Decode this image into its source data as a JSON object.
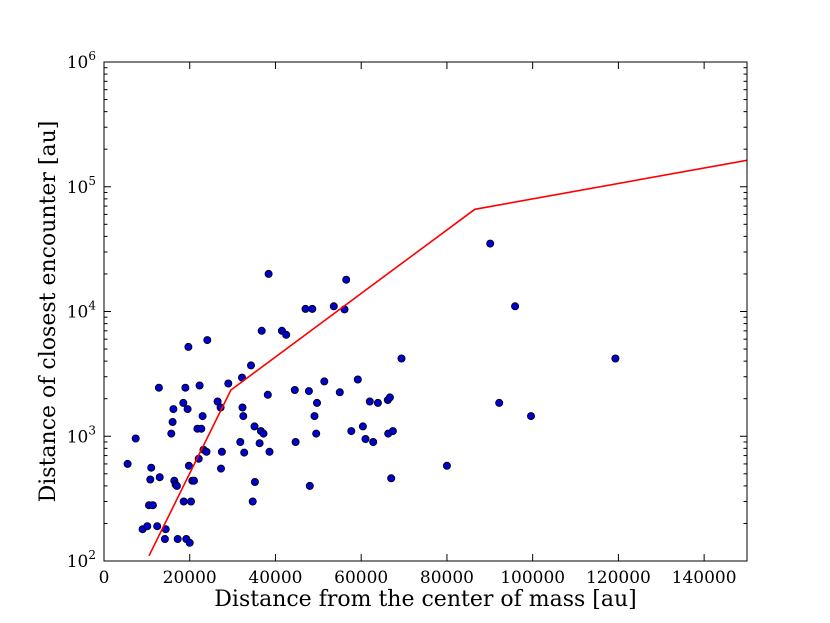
{
  "chart_data": {
    "type": "scatter",
    "title": "",
    "xlabel": "Distance from the center of mass [au]",
    "ylabel": "Distance of closest encounter [au]",
    "xlim": [
      0,
      150000
    ],
    "ylim": [
      100,
      1000000
    ],
    "yscale": "log",
    "grid": false,
    "xticks": [
      {
        "value": 0,
        "label": "0"
      },
      {
        "value": 20000,
        "label": "20000"
      },
      {
        "value": 40000,
        "label": "40000"
      },
      {
        "value": 60000,
        "label": "60000"
      },
      {
        "value": 80000,
        "label": "80000"
      },
      {
        "value": 100000,
        "label": "100000"
      },
      {
        "value": 120000,
        "label": "120000"
      },
      {
        "value": 140000,
        "label": "140000"
      }
    ],
    "yticks": [
      {
        "value": 100,
        "base": "10",
        "exp": "2"
      },
      {
        "value": 1000,
        "base": "10",
        "exp": "3"
      },
      {
        "value": 10000,
        "base": "10",
        "exp": "4"
      },
      {
        "value": 100000,
        "base": "10",
        "exp": "5"
      },
      {
        "value": 1000000,
        "base": "10",
        "exp": "6"
      }
    ],
    "colors": {
      "points": "#0000cc",
      "point_edge": "#000000",
      "line": "#ff0000"
    },
    "points": [
      [
        5500,
        600
      ],
      [
        7400,
        960
      ],
      [
        9000,
        180
      ],
      [
        10100,
        190
      ],
      [
        10500,
        280
      ],
      [
        10800,
        450
      ],
      [
        11000,
        560
      ],
      [
        11400,
        280
      ],
      [
        12400,
        190
      ],
      [
        12800,
        2450
      ],
      [
        13000,
        470
      ],
      [
        14200,
        150
      ],
      [
        14400,
        180
      ],
      [
        15700,
        1050
      ],
      [
        16000,
        1300
      ],
      [
        16200,
        1650
      ],
      [
        16400,
        440
      ],
      [
        16700,
        410
      ],
      [
        17000,
        400
      ],
      [
        17200,
        150
      ],
      [
        18500,
        1850
      ],
      [
        18600,
        300
      ],
      [
        19000,
        2450
      ],
      [
        19200,
        150
      ],
      [
        19500,
        1650
      ],
      [
        19700,
        5200
      ],
      [
        19800,
        580
      ],
      [
        20000,
        140
      ],
      [
        20300,
        300
      ],
      [
        20600,
        440
      ],
      [
        21000,
        440
      ],
      [
        21800,
        1150
      ],
      [
        22100,
        660
      ],
      [
        22300,
        2550
      ],
      [
        22700,
        1150
      ],
      [
        23000,
        1450
      ],
      [
        23200,
        780
      ],
      [
        23900,
        750
      ],
      [
        24100,
        5900
      ],
      [
        26500,
        1900
      ],
      [
        27200,
        1700
      ],
      [
        27300,
        550
      ],
      [
        27500,
        750
      ],
      [
        29000,
        2650
      ],
      [
        31800,
        900
      ],
      [
        32200,
        2950
      ],
      [
        32300,
        1700
      ],
      [
        32500,
        1450
      ],
      [
        32700,
        740
      ],
      [
        34300,
        3700
      ],
      [
        34700,
        300
      ],
      [
        35100,
        1200
      ],
      [
        35200,
        430
      ],
      [
        36300,
        880
      ],
      [
        36600,
        1100
      ],
      [
        36800,
        7000
      ],
      [
        37200,
        1050
      ],
      [
        38200,
        2150
      ],
      [
        38400,
        20000
      ],
      [
        38600,
        750
      ],
      [
        41500,
        7000
      ],
      [
        42500,
        6500
      ],
      [
        44500,
        2350
      ],
      [
        44700,
        900
      ],
      [
        47000,
        10500
      ],
      [
        47800,
        2300
      ],
      [
        48000,
        400
      ],
      [
        48600,
        10500
      ],
      [
        49100,
        1450
      ],
      [
        49500,
        1050
      ],
      [
        49700,
        1850
      ],
      [
        51400,
        2750
      ],
      [
        53600,
        11000
      ],
      [
        55000,
        2250
      ],
      [
        56100,
        10400
      ],
      [
        56500,
        18000
      ],
      [
        57700,
        1100
      ],
      [
        59200,
        2850
      ],
      [
        60400,
        1200
      ],
      [
        61000,
        950
      ],
      [
        62000,
        1900
      ],
      [
        62800,
        900
      ],
      [
        63900,
        1850
      ],
      [
        66200,
        1950
      ],
      [
        66300,
        1050
      ],
      [
        66700,
        2050
      ],
      [
        67000,
        460
      ],
      [
        67400,
        1100
      ],
      [
        69400,
        4200
      ],
      [
        80000,
        580
      ],
      [
        90100,
        35000
      ],
      [
        92200,
        1850
      ],
      [
        95900,
        11000
      ],
      [
        99600,
        1450
      ],
      [
        119300,
        4200
      ]
    ],
    "line": [
      [
        10500,
        110
      ],
      [
        29600,
        2350
      ],
      [
        86500,
        66000
      ],
      [
        150000,
        163000
      ]
    ]
  }
}
